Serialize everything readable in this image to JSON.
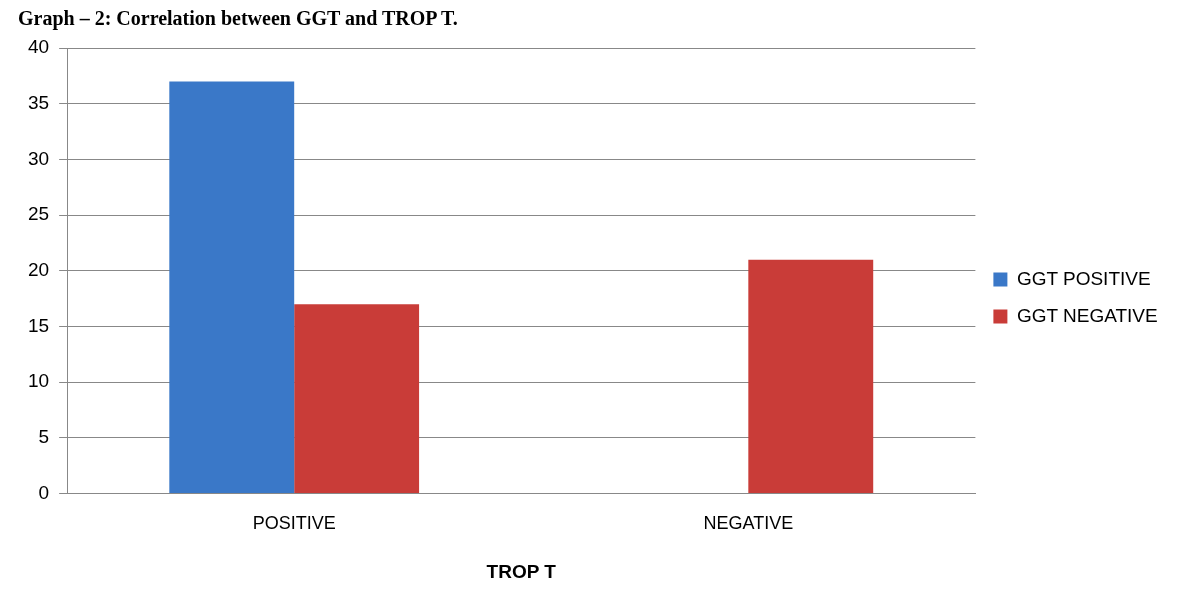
{
  "chart_data": {
    "type": "bar",
    "title": "Graph – 2: Correlation between GGT and TROP T.",
    "xlabel": "TROP T",
    "categories": [
      "POSITIVE",
      "NEGATIVE"
    ],
    "series": [
      {
        "name": "GGT POSITIVE",
        "color": "#3a78c8",
        "values": [
          37,
          0
        ]
      },
      {
        "name": "GGT NEGATIVE",
        "color": "#c93c38",
        "values": [
          17,
          21
        ]
      }
    ],
    "ylim": [
      0,
      40
    ],
    "yticks": [
      0,
      5,
      10,
      15,
      20,
      25,
      30,
      35,
      40
    ],
    "grid": "y",
    "legend": "right"
  }
}
